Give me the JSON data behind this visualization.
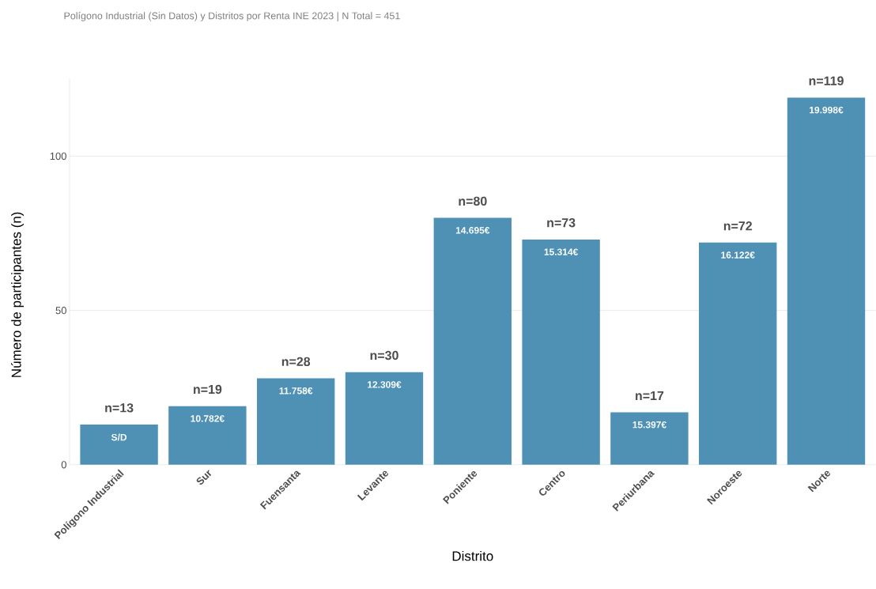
{
  "chart_data": {
    "type": "bar",
    "title": "Polígono Industrial (Sin Datos) y Distritos por Renta INE 2023 | N Total = 451",
    "xlabel": "Distrito",
    "ylabel": "Número de participantes (n)",
    "categories": [
      "Polígono Industrial",
      "Sur",
      "Fuensanta",
      "Levante",
      "Poniente",
      "Centro",
      "Periurbana",
      "Noroeste",
      "Norte"
    ],
    "values": [
      13,
      19,
      28,
      30,
      80,
      73,
      17,
      72,
      119
    ],
    "value_labels": [
      "n=13",
      "n=19",
      "n=28",
      "n=30",
      "n=80",
      "n=73",
      "n=17",
      "n=72",
      "n=119"
    ],
    "color": "#4f91b5",
    "ylim": [
      0,
      125
    ],
    "yticks": [
      0,
      50,
      100
    ],
    "grid": "y",
    "annotations": [
      {
        "text": "S/D",
        "x": "Polígono Industrial",
        "y": 13
      },
      {
        "text": "10.782€",
        "x": "Sur",
        "y": 19
      },
      {
        "text": "11.758€",
        "x": "Fuensanta",
        "y": 28
      },
      {
        "text": "12.309€",
        "x": "Levante",
        "y": 30
      },
      {
        "text": "14.695€",
        "x": "Poniente",
        "y": 80
      },
      {
        "text": "15.314€",
        "x": "Centro",
        "y": 73
      },
      {
        "text": "15.397€",
        "x": "Periurbana",
        "y": 17
      },
      {
        "text": "16.122€",
        "x": "Noroeste",
        "y": 72
      },
      {
        "text": "19.998€",
        "x": "Norte",
        "y": 119
      }
    ]
  }
}
